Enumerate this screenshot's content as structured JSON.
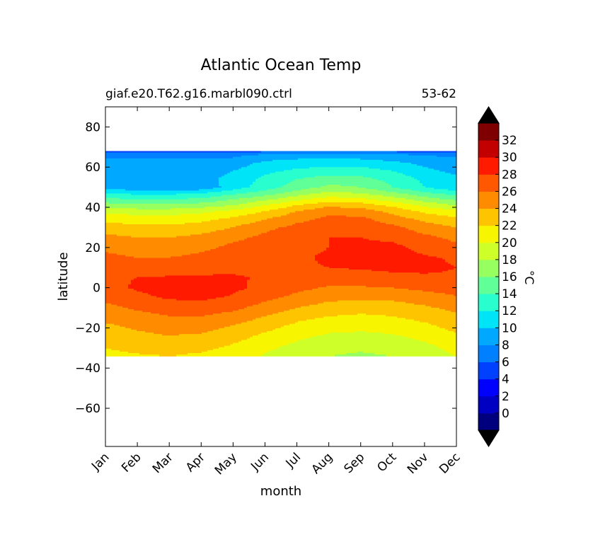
{
  "chart_data": {
    "type": "heatmap",
    "title": "Atlantic Ocean Temp",
    "subtitle_left": "giaf.e20.T62.g16.marbl090.ctrl",
    "subtitle_right": "53-62",
    "xlabel": "month",
    "ylabel": "latitude",
    "x_ticks": [
      "Jan",
      "Feb",
      "Mar",
      "Apr",
      "May",
      "Jun",
      "Jul",
      "Aug",
      "Sep",
      "Oct",
      "Nov",
      "Dec"
    ],
    "y_ticks": [
      80,
      60,
      40,
      20,
      0,
      -20,
      -40,
      -60
    ],
    "ylim": [
      -79,
      90
    ],
    "colorbar": {
      "label": "°C",
      "tick_labels": [
        "0",
        "2",
        "4",
        "6",
        "8",
        "10",
        "12",
        "14",
        "16",
        "18",
        "20",
        "22",
        "24",
        "26",
        "28",
        "30",
        "32"
      ],
      "tick_values": [
        0,
        2,
        4,
        6,
        8,
        10,
        12,
        14,
        16,
        18,
        20,
        22,
        24,
        26,
        28,
        30,
        32
      ],
      "levels": [
        -2,
        0,
        2,
        4,
        6,
        8,
        10,
        12,
        14,
        16,
        18,
        20,
        22,
        24,
        26,
        28,
        30,
        32,
        34
      ],
      "extend": "both",
      "colors": [
        "#00007f",
        "#0000c3",
        "#0000ff",
        "#0040ff",
        "#0080ff",
        "#00a8ff",
        "#00e4f8",
        "#29ffce",
        "#60ff97",
        "#97ff60",
        "#ceff29",
        "#f8f500",
        "#ffc400",
        "#ff8c00",
        "#ff5800",
        "#ff1a00",
        "#c30000",
        "#7f0000"
      ],
      "under_color": "#000000",
      "over_color": "#000000"
    },
    "latitudes": [
      68,
      66,
      62,
      58,
      54,
      50,
      47,
      44,
      41,
      38,
      34,
      30,
      25,
      20,
      15,
      10,
      5,
      0,
      -5,
      -10,
      -15,
      -20,
      -25,
      -30,
      -34
    ],
    "temperature": [
      [
        5.0,
        5.0,
        5.0,
        5.0,
        5.0,
        5.5,
        6.0,
        6.0,
        6.0,
        5.5,
        5.0,
        5.0
      ],
      [
        7.5,
        7.5,
        7.5,
        7.5,
        7.5,
        8.5,
        9.0,
        9.0,
        9.0,
        8.5,
        8.0,
        7.5
      ],
      [
        8.5,
        8.5,
        8.5,
        8.5,
        9.0,
        10.5,
        11.0,
        11.0,
        11.0,
        10.5,
        9.5,
        9.0
      ],
      [
        9.0,
        9.0,
        8.0,
        9.0,
        10.0,
        11.5,
        12.5,
        13.0,
        13.0,
        12.0,
        10.5,
        9.5
      ],
      [
        9.5,
        9.5,
        8.5,
        9.5,
        10.5,
        12.5,
        14.0,
        15.0,
        14.5,
        13.5,
        11.5,
        10.5
      ],
      [
        9.0,
        8.5,
        8.0,
        8.5,
        11.0,
        13.0,
        15.0,
        16.5,
        16.0,
        14.0,
        12.0,
        10.5
      ],
      [
        12.0,
        11.5,
        11.5,
        12.0,
        13.5,
        15.0,
        17.0,
        18.5,
        18.0,
        16.5,
        14.5,
        13.0
      ],
      [
        14.5,
        14.0,
        14.0,
        14.5,
        16.0,
        17.5,
        19.5,
        21.0,
        20.5,
        19.0,
        17.0,
        15.5
      ],
      [
        17.0,
        16.5,
        16.5,
        17.0,
        18.0,
        20.0,
        22.0,
        23.5,
        23.0,
        21.5,
        19.5,
        18.0
      ],
      [
        19.5,
        19.0,
        19.0,
        19.5,
        20.5,
        22.0,
        24.0,
        25.5,
        25.0,
        23.5,
        21.5,
        20.5
      ],
      [
        21.5,
        21.0,
        21.0,
        21.5,
        22.5,
        24.0,
        25.5,
        26.5,
        26.5,
        25.0,
        23.5,
        22.5
      ],
      [
        23.0,
        22.5,
        22.5,
        23.0,
        24.0,
        25.5,
        26.5,
        27.5,
        27.5,
        26.5,
        25.0,
        24.0
      ],
      [
        24.5,
        24.0,
        24.0,
        24.5,
        25.5,
        26.5,
        27.5,
        28.0,
        28.0,
        27.5,
        26.5,
        25.5
      ],
      [
        25.5,
        25.0,
        25.0,
        25.5,
        26.5,
        27.0,
        27.5,
        28.0,
        28.5,
        28.5,
        27.5,
        26.5
      ],
      [
        26.5,
        26.0,
        26.0,
        26.5,
        27.0,
        27.5,
        27.8,
        28.2,
        28.5,
        28.5,
        28.2,
        27.8
      ],
      [
        27.2,
        27.0,
        27.0,
        27.2,
        27.6,
        27.8,
        27.8,
        28.0,
        28.2,
        28.4,
        28.3,
        28.0
      ],
      [
        27.8,
        28.0,
        28.2,
        28.3,
        28.2,
        27.8,
        27.5,
        27.0,
        27.2,
        27.5,
        27.8,
        27.8
      ],
      [
        27.5,
        28.2,
        28.6,
        28.7,
        28.4,
        27.5,
        26.5,
        25.8,
        25.8,
        26.0,
        26.5,
        27.0
      ],
      [
        26.5,
        27.6,
        28.2,
        28.3,
        27.8,
        26.5,
        25.5,
        24.5,
        24.3,
        24.5,
        25.0,
        25.8
      ],
      [
        25.5,
        26.3,
        27.0,
        27.2,
        26.5,
        25.2,
        24.0,
        23.2,
        22.8,
        23.0,
        23.7,
        24.5
      ],
      [
        24.5,
        25.2,
        25.8,
        25.8,
        25.0,
        23.8,
        22.5,
        21.8,
        21.5,
        21.8,
        22.5,
        23.5
      ],
      [
        23.5,
        24.2,
        24.7,
        24.6,
        23.7,
        22.5,
        21.3,
        20.6,
        20.4,
        20.7,
        21.4,
        22.5
      ],
      [
        22.8,
        23.4,
        23.8,
        23.5,
        22.6,
        21.4,
        20.3,
        19.5,
        19.3,
        19.6,
        20.4,
        21.6
      ],
      [
        22.0,
        22.5,
        22.8,
        22.5,
        21.6,
        20.4,
        19.4,
        18.6,
        18.3,
        18.6,
        19.4,
        20.6
      ],
      [
        21.5,
        21.8,
        22.0,
        21.6,
        20.8,
        19.8,
        18.8,
        18.0,
        17.7,
        18.0,
        18.8,
        20.0
      ]
    ]
  }
}
